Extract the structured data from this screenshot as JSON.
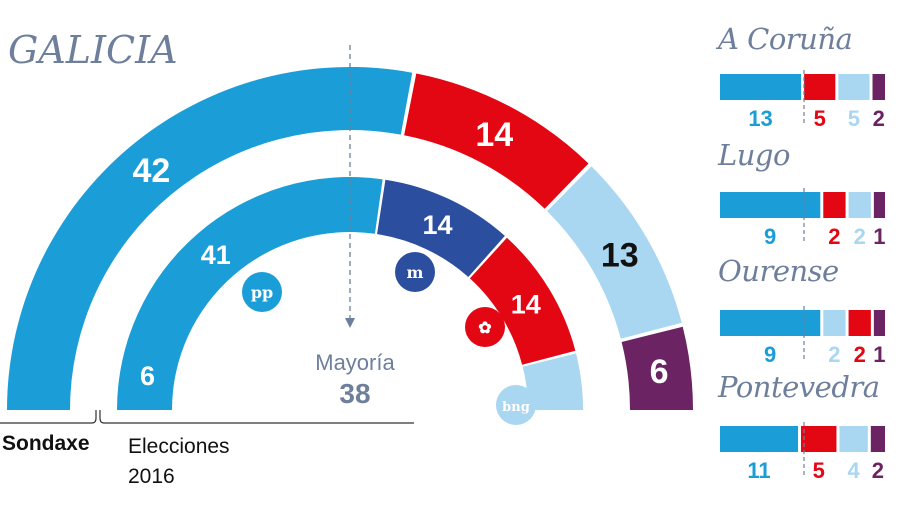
{
  "title": "GALICIA",
  "colors": {
    "pp": "#1b9ed8",
    "psoe": "#e30613",
    "bng": "#a9d6f1",
    "en_marea": "#6b2363",
    "en_marea_2016": "#2c4e9e",
    "text": "#6e7f9c"
  },
  "majority": {
    "label": "Mayoría",
    "value": 38
  },
  "ring_labels": {
    "outer": "Sondaxe",
    "inner": "Elecciones 2016",
    "inner_line1": "Elecciones",
    "inner_line2": "2016"
  },
  "chart_data": [
    {
      "type": "pie",
      "name": "Sondaxe",
      "categories": [
        "PP",
        "PSOE",
        "BNG",
        "En Marea"
      ],
      "values": [
        42,
        14,
        13,
        6
      ],
      "colors": [
        "#1b9ed8",
        "#e30613",
        "#a9d6f1",
        "#6b2363"
      ],
      "label_colors": [
        "#fff",
        "#fff",
        "#111",
        "#fff"
      ],
      "logos": []
    },
    {
      "type": "pie",
      "name": "Elecciones 2016",
      "categories": [
        "PP",
        "En Marea",
        "PSOE",
        "BNG"
      ],
      "values": [
        41,
        14,
        14,
        6
      ],
      "colors": [
        "#1b9ed8",
        "#2c4e9e",
        "#e30613",
        "#a9d6f1"
      ],
      "label_colors": [
        "#fff",
        "#fff",
        "#fff",
        "#fff"
      ],
      "logos": [
        "pp",
        "m",
        "psoe-rose",
        "bng"
      ]
    },
    {
      "type": "bar",
      "stacked": true,
      "orientation": "horizontal",
      "provinces": [
        {
          "name": "A Coruña",
          "parties": [
            "PP",
            "PSOE",
            "BNG",
            "En Marea"
          ],
          "values": [
            13,
            5,
            5,
            2
          ],
          "colors": [
            "#1b9ed8",
            "#e30613",
            "#a9d6f1",
            "#6b2363"
          ]
        },
        {
          "name": "Lugo",
          "parties": [
            "PP",
            "PSOE",
            "BNG",
            "En Marea"
          ],
          "values": [
            9,
            2,
            2,
            1
          ],
          "colors": [
            "#1b9ed8",
            "#e30613",
            "#a9d6f1",
            "#6b2363"
          ]
        },
        {
          "name": "Ourense",
          "parties": [
            "PP",
            "BNG",
            "PSOE",
            "En Marea"
          ],
          "values": [
            9,
            2,
            2,
            1
          ],
          "colors": [
            "#1b9ed8",
            "#a9d6f1",
            "#e30613",
            "#6b2363"
          ]
        },
        {
          "name": "Pontevedra",
          "parties": [
            "PP",
            "PSOE",
            "BNG",
            "En Marea"
          ],
          "values": [
            11,
            5,
            4,
            2
          ],
          "colors": [
            "#1b9ed8",
            "#e30613",
            "#a9d6f1",
            "#6b2363"
          ]
        }
      ]
    }
  ]
}
